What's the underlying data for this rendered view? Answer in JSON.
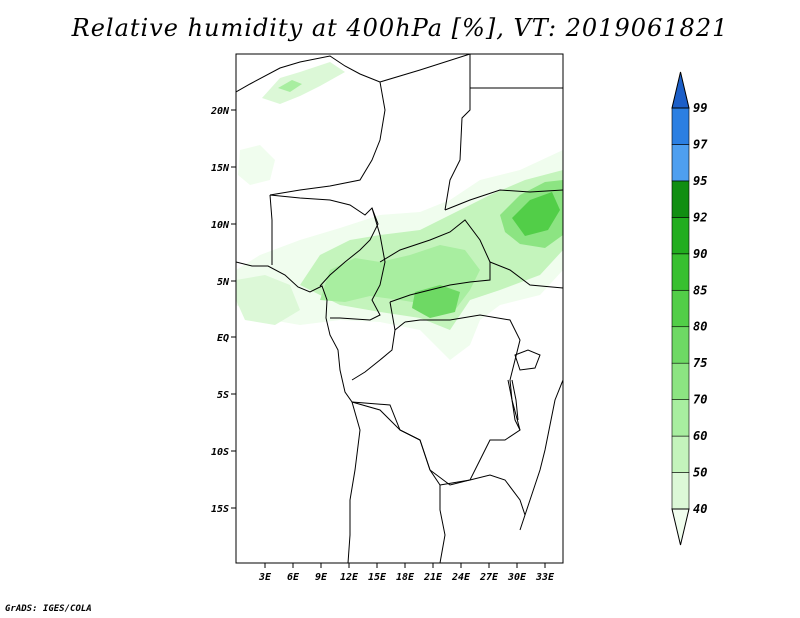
{
  "title": "Relative humidity at 400hPa [%], VT: 2019061821",
  "credit": "GrADS: IGES/COLA",
  "map": {
    "lat_ticks": [
      "20N",
      "15N",
      "10N",
      "5N",
      "EQ",
      "5S",
      "10S",
      "15S"
    ],
    "lon_ticks": [
      "3E",
      "6E",
      "9E",
      "12E",
      "15E",
      "18E",
      "21E",
      "24E",
      "27E",
      "30E",
      "33E"
    ]
  },
  "colorbar": {
    "labels": [
      "40",
      "50",
      "60",
      "70",
      "75",
      "80",
      "85",
      "90",
      "92",
      "95",
      "97",
      "99"
    ],
    "colors": [
      "#f0fdee",
      "#dcf8d7",
      "#c4f4bc",
      "#a8eea0",
      "#8ce482",
      "#6ed964",
      "#52ce48",
      "#38c030",
      "#22ad1f",
      "#118e12",
      "#4e9ff0",
      "#2b7fe2",
      "#1c5fc8"
    ]
  }
}
